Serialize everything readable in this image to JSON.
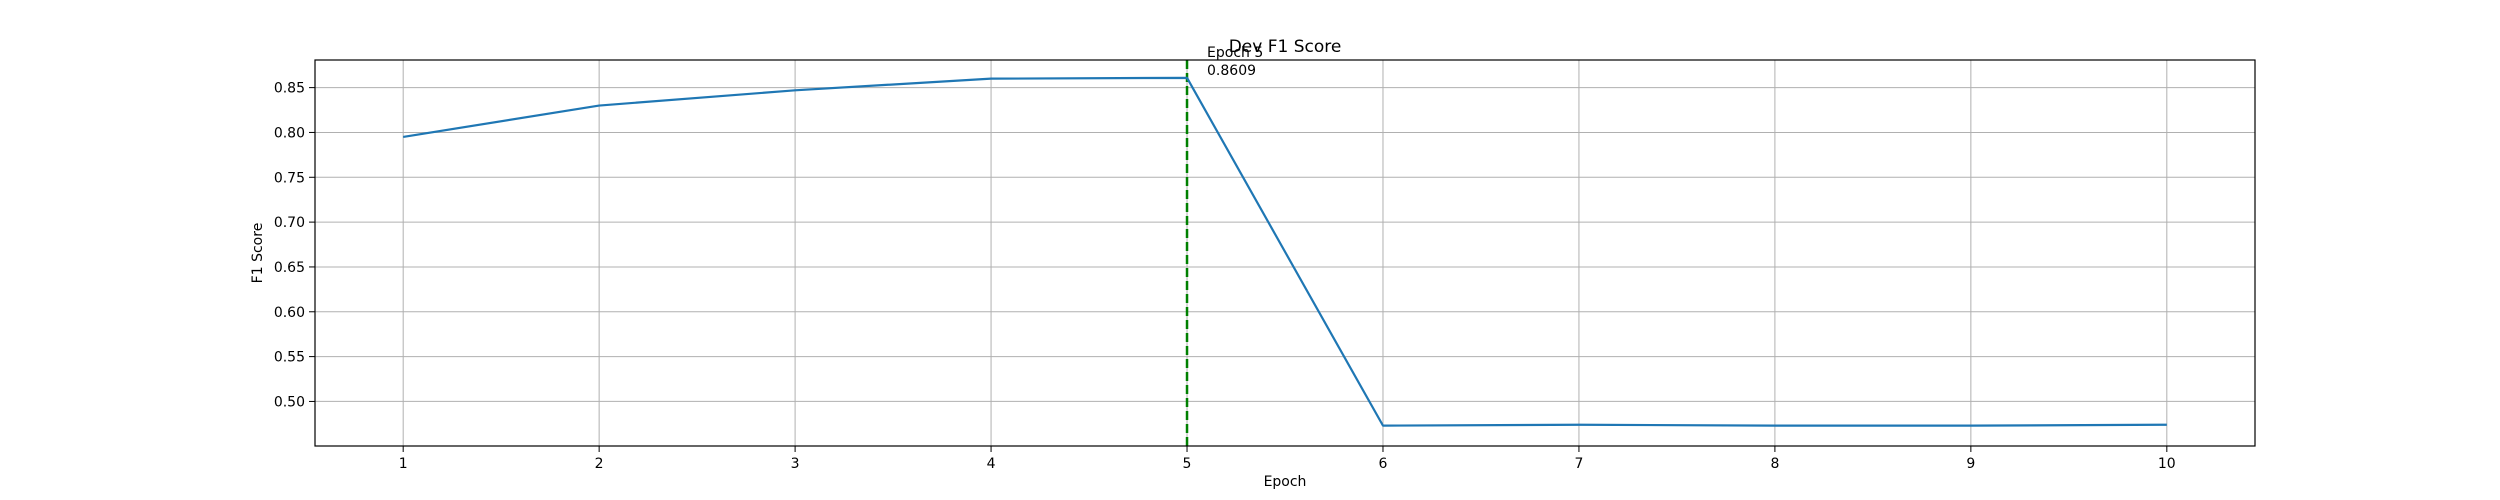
{
  "chart_data": {
    "type": "line",
    "title": "Dev F1 Score",
    "xlabel": "Epoch",
    "ylabel": "F1 Score",
    "x": [
      1,
      2,
      3,
      4,
      5,
      6,
      7,
      8,
      9,
      10
    ],
    "series": [
      {
        "values": [
          0.795,
          0.83,
          0.847,
          0.86,
          0.8609,
          0.473,
          0.474,
          0.473,
          0.473,
          0.474
        ],
        "color": "#1f77b4"
      }
    ],
    "xticks": [
      "1",
      "2",
      "3",
      "4",
      "5",
      "6",
      "7",
      "8",
      "9",
      "10"
    ],
    "yticks": [
      "0.50",
      "0.55",
      "0.60",
      "0.65",
      "0.70",
      "0.75",
      "0.80",
      "0.85"
    ],
    "xlim": [
      0.55,
      10.45
    ],
    "ylim": [
      0.4503,
      0.8808
    ],
    "grid": true,
    "best": {
      "epoch": 5,
      "value": 0.8609,
      "epoch_label": "Epoch 5",
      "value_label": "0.8609",
      "line_color": "#008000"
    }
  }
}
